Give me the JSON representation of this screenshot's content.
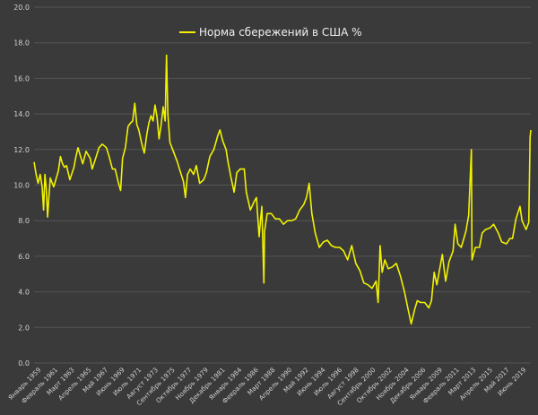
{
  "chart_data": {
    "type": "line",
    "title": "",
    "xlabel": "",
    "ylabel": "",
    "ylim": [
      0,
      20
    ],
    "yticks": [
      "0.0",
      "2.0",
      "4.0",
      "6.0",
      "8.0",
      "10.0",
      "12.0",
      "14.0",
      "16.0",
      "18.0",
      "20.0"
    ],
    "grid": "horizontal",
    "legend_position": "top-center",
    "series_color": "#f2f200",
    "gridline_color": "#555555",
    "background_color": "#3a3a3a",
    "x_tick_labels": [
      "Январь 1959",
      "Февраль 1961",
      "Март 1963",
      "Апрель 1965",
      "Май 1967",
      "Июнь 1969",
      "Июль 1971",
      "Август 1973",
      "Сентябрь 1975",
      "Октябрь 1977",
      "Ноябрь 1979",
      "Декабрь 1981",
      "Январь 1984",
      "Февраль 1986",
      "Март 1988",
      "Апрель 1990",
      "Май 1992",
      "Июнь 1994",
      "Июль 1996",
      "Август 1998",
      "Сентябрь 2000",
      "Октябрь 2002",
      "Ноябрь 2004",
      "Декабрь 2006",
      "Январь 2009",
      "Февраль 2011",
      "Март 2013",
      "Апрель 2015",
      "Май 2017",
      "Июнь 2019"
    ],
    "x_range": [
      "1959-01",
      "2020-04"
    ],
    "series": [
      {
        "name": "Норма сбережений в США %",
        "points": [
          [
            "1959-01",
            11.3
          ],
          [
            "1959-04",
            10.6
          ],
          [
            "1959-07",
            10.1
          ],
          [
            "1959-10",
            10.6
          ],
          [
            "1960-01",
            9.9
          ],
          [
            "1960-03",
            8.6
          ],
          [
            "1960-05",
            10.6
          ],
          [
            "1960-07",
            9.8
          ],
          [
            "1960-09",
            8.2
          ],
          [
            "1960-11",
            9.4
          ],
          [
            "1961-01",
            10.4
          ],
          [
            "1961-06",
            9.9
          ],
          [
            "1962-01",
            10.8
          ],
          [
            "1962-04",
            11.6
          ],
          [
            "1962-07",
            11.2
          ],
          [
            "1962-10",
            11.0
          ],
          [
            "1963-01",
            11.1
          ],
          [
            "1963-06",
            10.3
          ],
          [
            "1963-12",
            11.0
          ],
          [
            "1964-03",
            11.6
          ],
          [
            "1964-06",
            12.1
          ],
          [
            "1964-09",
            11.7
          ],
          [
            "1965-01",
            11.2
          ],
          [
            "1965-06",
            11.9
          ],
          [
            "1965-12",
            11.5
          ],
          [
            "1966-03",
            10.9
          ],
          [
            "1966-09",
            11.6
          ],
          [
            "1967-01",
            12.1
          ],
          [
            "1967-06",
            12.3
          ],
          [
            "1967-12",
            12.1
          ],
          [
            "1968-04",
            11.6
          ],
          [
            "1968-09",
            10.9
          ],
          [
            "1969-01",
            10.9
          ],
          [
            "1969-06",
            10.1
          ],
          [
            "1969-09",
            9.7
          ],
          [
            "1969-12",
            11.5
          ],
          [
            "1970-04",
            12.1
          ],
          [
            "1970-08",
            13.3
          ],
          [
            "1970-12",
            13.5
          ],
          [
            "1971-03",
            13.6
          ],
          [
            "1971-06",
            14.6
          ],
          [
            "1971-09",
            13.4
          ],
          [
            "1971-12",
            13.1
          ],
          [
            "1972-04",
            12.4
          ],
          [
            "1972-08",
            11.8
          ],
          [
            "1972-12",
            12.9
          ],
          [
            "1973-03",
            13.5
          ],
          [
            "1973-06",
            13.9
          ],
          [
            "1973-09",
            13.6
          ],
          [
            "1973-12",
            14.5
          ],
          [
            "1974-03",
            13.8
          ],
          [
            "1974-06",
            12.6
          ],
          [
            "1974-09",
            13.4
          ],
          [
            "1974-12",
            14.4
          ],
          [
            "1975-03",
            13.6
          ],
          [
            "1975-05",
            17.3
          ],
          [
            "1975-07",
            14.0
          ],
          [
            "1975-10",
            12.4
          ],
          [
            "1976-03",
            11.9
          ],
          [
            "1976-09",
            11.3
          ],
          [
            "1977-01",
            10.8
          ],
          [
            "1977-06",
            10.2
          ],
          [
            "1977-09",
            9.3
          ],
          [
            "1977-12",
            10.6
          ],
          [
            "1978-04",
            10.9
          ],
          [
            "1978-09",
            10.6
          ],
          [
            "1979-01",
            11.1
          ],
          [
            "1979-06",
            10.1
          ],
          [
            "1979-12",
            10.3
          ],
          [
            "1980-04",
            10.7
          ],
          [
            "1980-09",
            11.6
          ],
          [
            "1981-03",
            12.0
          ],
          [
            "1981-09",
            12.8
          ],
          [
            "1981-12",
            13.1
          ],
          [
            "1982-04",
            12.5
          ],
          [
            "1982-09",
            12.0
          ],
          [
            "1982-12",
            11.3
          ],
          [
            "1983-04",
            10.5
          ],
          [
            "1983-09",
            9.6
          ],
          [
            "1984-01",
            10.7
          ],
          [
            "1984-06",
            10.9
          ],
          [
            "1984-12",
            10.9
          ],
          [
            "1985-03",
            9.6
          ],
          [
            "1985-09",
            8.6
          ],
          [
            "1986-03",
            9.1
          ],
          [
            "1986-06",
            9.3
          ],
          [
            "1986-10",
            7.1
          ],
          [
            "1986-12",
            8.0
          ],
          [
            "1987-02",
            8.8
          ],
          [
            "1987-05",
            4.5
          ],
          [
            "1987-06",
            7.4
          ],
          [
            "1987-10",
            8.4
          ],
          [
            "1988-04",
            8.4
          ],
          [
            "1988-10",
            8.1
          ],
          [
            "1989-04",
            8.1
          ],
          [
            "1989-10",
            7.8
          ],
          [
            "1990-04",
            8.0
          ],
          [
            "1990-10",
            8.0
          ],
          [
            "1991-04",
            8.1
          ],
          [
            "1991-10",
            8.6
          ],
          [
            "1992-04",
            8.9
          ],
          [
            "1992-08",
            9.3
          ],
          [
            "1992-12",
            10.1
          ],
          [
            "1993-04",
            8.4
          ],
          [
            "1993-09",
            7.3
          ],
          [
            "1994-03",
            6.5
          ],
          [
            "1994-09",
            6.8
          ],
          [
            "1995-03",
            6.9
          ],
          [
            "1995-09",
            6.6
          ],
          [
            "1996-03",
            6.5
          ],
          [
            "1996-09",
            6.5
          ],
          [
            "1997-03",
            6.3
          ],
          [
            "1997-09",
            5.8
          ],
          [
            "1998-03",
            6.6
          ],
          [
            "1998-09",
            5.6
          ],
          [
            "1999-03",
            5.2
          ],
          [
            "1999-09",
            4.5
          ],
          [
            "2000-03",
            4.4
          ],
          [
            "2000-09",
            4.2
          ],
          [
            "2001-03",
            4.6
          ],
          [
            "2001-06",
            3.4
          ],
          [
            "2001-09",
            6.6
          ],
          [
            "2001-12",
            5.1
          ],
          [
            "2002-04",
            5.8
          ],
          [
            "2002-09",
            5.3
          ],
          [
            "2003-03",
            5.4
          ],
          [
            "2003-09",
            5.6
          ],
          [
            "2004-03",
            4.9
          ],
          [
            "2004-09",
            4.0
          ],
          [
            "2005-03",
            2.9
          ],
          [
            "2005-07",
            2.2
          ],
          [
            "2005-12",
            3.0
          ],
          [
            "2006-04",
            3.5
          ],
          [
            "2006-09",
            3.4
          ],
          [
            "2007-03",
            3.4
          ],
          [
            "2007-09",
            3.1
          ],
          [
            "2008-01",
            3.5
          ],
          [
            "2008-05",
            5.1
          ],
          [
            "2008-09",
            4.4
          ],
          [
            "2009-05",
            6.1
          ],
          [
            "2009-10",
            4.6
          ],
          [
            "2010-03",
            5.7
          ],
          [
            "2010-09",
            6.3
          ],
          [
            "2010-12",
            7.8
          ],
          [
            "2011-04",
            6.7
          ],
          [
            "2011-09",
            6.5
          ],
          [
            "2012-04",
            7.4
          ],
          [
            "2012-08",
            8.3
          ],
          [
            "2012-12",
            12.0
          ],
          [
            "2013-01",
            5.8
          ],
          [
            "2013-06",
            6.5
          ],
          [
            "2013-12",
            6.5
          ],
          [
            "2014-04",
            7.3
          ],
          [
            "2014-09",
            7.5
          ],
          [
            "2015-04",
            7.6
          ],
          [
            "2015-09",
            7.8
          ],
          [
            "2016-04",
            7.3
          ],
          [
            "2016-09",
            6.8
          ],
          [
            "2017-04",
            6.7
          ],
          [
            "2017-09",
            7.0
          ],
          [
            "2018-01",
            7.0
          ],
          [
            "2018-06",
            8.1
          ],
          [
            "2018-12",
            8.8
          ],
          [
            "2019-03",
            8.0
          ],
          [
            "2019-09",
            7.5
          ],
          [
            "2020-01",
            7.9
          ],
          [
            "2020-03",
            12.7
          ],
          [
            "2020-04",
            13.1
          ]
        ]
      }
    ]
  }
}
